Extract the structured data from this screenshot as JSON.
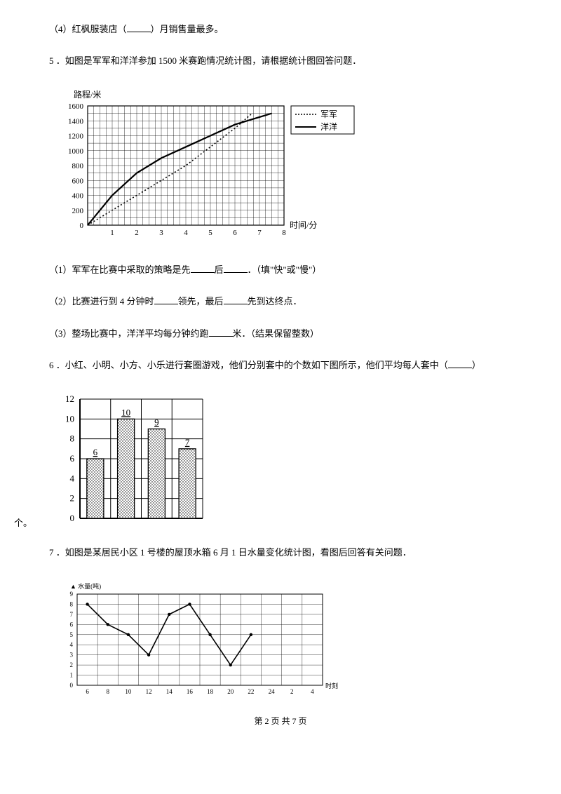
{
  "q4": {
    "text_before": "（4）红枫服装店（",
    "text_after": "）月销售量最多。"
  },
  "q5": {
    "intro": "5 ．如图是军军和洋洋参加 1500 米赛跑情况统计图，请根据统计图回答问题．",
    "chart": {
      "type": "line",
      "ylabel": "路程/米",
      "xlabel": "时间/分",
      "ylim": [
        0,
        1600
      ],
      "ytick_step": 200,
      "yticks": [
        "200",
        "400",
        "600",
        "800",
        "1000",
        "1200",
        "1400",
        "1600"
      ],
      "xlim": [
        0,
        8
      ],
      "xticks": [
        "1",
        "2",
        "3",
        "4",
        "5",
        "6",
        "7",
        "8"
      ],
      "grid_color": "#000000",
      "background_color": "#ffffff",
      "legend": [
        {
          "label": "军军",
          "style": "dotted",
          "color": "#000000"
        },
        {
          "label": "洋洋",
          "style": "solid",
          "color": "#000000"
        }
      ],
      "series": {
        "junjun": [
          [
            0,
            0
          ],
          [
            1,
            200
          ],
          [
            2,
            400
          ],
          [
            3,
            600
          ],
          [
            4,
            800
          ],
          [
            5,
            1050
          ],
          [
            6,
            1300
          ],
          [
            6.7,
            1500
          ]
        ],
        "yangyang": [
          [
            0,
            0
          ],
          [
            1,
            400
          ],
          [
            2,
            700
          ],
          [
            3,
            900
          ],
          [
            4,
            1050
          ],
          [
            5,
            1200
          ],
          [
            6,
            1350
          ],
          [
            7,
            1450
          ],
          [
            7.5,
            1500
          ]
        ]
      }
    },
    "sub1": {
      "t1": "（1）军军在比赛中采取的策略是先",
      "t2": "后",
      "t3": "．（填\"快\"或\"慢\"）"
    },
    "sub2": {
      "t1": "（2）比赛进行到 4 分钟时",
      "t2": "领先，最后",
      "t3": "先到达终点．"
    },
    "sub3": {
      "t1": "（3）整场比赛中，洋洋平均每分钟约跑",
      "t2": "米．（结果保留整数）"
    }
  },
  "q6": {
    "intro_before": "6 ．小红、小明、小方、小乐进行套圈游戏，他们分别套中的个数如下图所示，他们平均每人套中（",
    "intro_after": "）",
    "suffix": "个。",
    "chart": {
      "type": "bar",
      "ylim": [
        0,
        12
      ],
      "ytick_step": 2,
      "yticks": [
        "0",
        "2",
        "4",
        "6",
        "8",
        "10",
        "12"
      ],
      "values": [
        6,
        10,
        9,
        7
      ],
      "value_labels": [
        "6",
        "10",
        "9",
        "7"
      ],
      "bar_fill": "pattern",
      "bar_border": "#000000",
      "grid_color": "#000000",
      "background_color": "#ffffff"
    }
  },
  "q7": {
    "intro": "7 ．如图是某居民小区 1 号楼的屋顶水箱 6 月 1 日水量变化统计图，看图后回答有关问题．",
    "chart": {
      "type": "line",
      "ylabel": "水量(吨)",
      "xlabel": "时刻",
      "ylim": [
        0,
        9
      ],
      "ytick_step": 1,
      "xticks": [
        "6",
        "8",
        "10",
        "12",
        "14",
        "16",
        "18",
        "20",
        "22",
        "24",
        "2",
        "4"
      ],
      "grid_color": "#000000",
      "background_color": "#ffffff",
      "data": [
        [
          6,
          8
        ],
        [
          8,
          6
        ],
        [
          10,
          5
        ],
        [
          12,
          3
        ],
        [
          14,
          7
        ],
        [
          16,
          8
        ],
        [
          18,
          5
        ],
        [
          20,
          2
        ],
        [
          22,
          5
        ]
      ]
    }
  },
  "footer": {
    "prefix": "第 ",
    "page": "2",
    "mid": " 页 共 ",
    "total": "7",
    "suffix": " 页"
  }
}
